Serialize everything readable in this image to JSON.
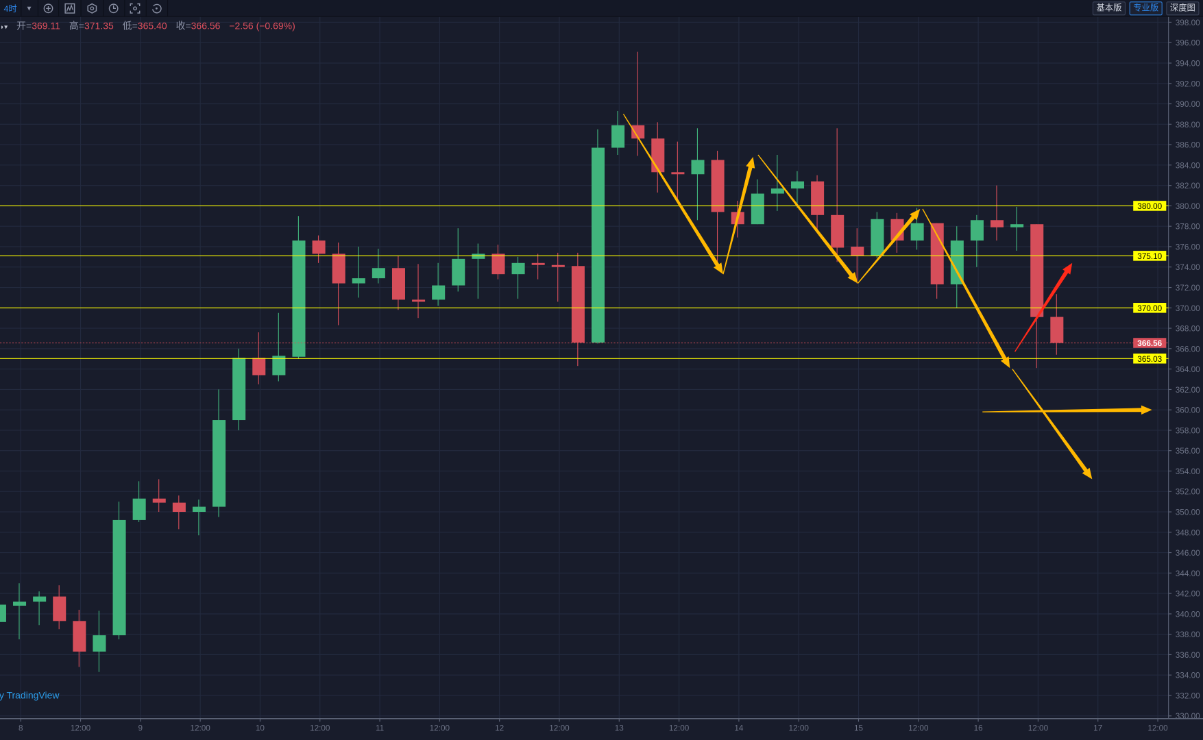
{
  "toolbar": {
    "interval": "4时",
    "icons": [
      "indicator-add-icon",
      "chart-type-icon",
      "settings-hex-icon",
      "clock-icon",
      "screenshot-icon",
      "undo-icon"
    ],
    "right_buttons": [
      {
        "label": "基本版",
        "active": false
      },
      {
        "label": "专业版",
        "active": true
      },
      {
        "label": "深度图",
        "active": false
      }
    ]
  },
  "legend": {
    "open_label": "开=",
    "open": "369.11",
    "high_label": "高=",
    "high": "371.35",
    "low_label": "低=",
    "low": "365.40",
    "close_label": "收=",
    "close": "366.56",
    "change": "−2.56 (−0.69%)"
  },
  "watermark": "by TradingView",
  "colors": {
    "background": "#181c2b",
    "grid": "#232a3f",
    "up": "#41b47c",
    "down": "#d64e5a",
    "level_line": "#ffff00",
    "arrow": "#ffb800",
    "arrow_red": "#ff2a1a",
    "last_price": "#d64e5a"
  },
  "chart_data": {
    "type": "candlestick",
    "interval": "4时",
    "ylim": [
      330,
      399
    ],
    "price_ticks": [
      398,
      396,
      394,
      392,
      390,
      388,
      386,
      384,
      382,
      380,
      378,
      376,
      374,
      372,
      370,
      368,
      366,
      364,
      362,
      360,
      358,
      356,
      354,
      352,
      350,
      348,
      346,
      344,
      342,
      340,
      338,
      336,
      334,
      332,
      330
    ],
    "time_ticks": [
      "8",
      "12:00",
      "9",
      "12:00",
      "10",
      "12:00",
      "11",
      "12:00",
      "12",
      "12:00",
      "13",
      "12:00",
      "14",
      "12:00",
      "15",
      "12:00",
      "16",
      "12:00",
      "17",
      "12:00"
    ],
    "grid": true,
    "candles": [
      [
        "7 20:00",
        339.2,
        342.8,
        339.0,
        340.9
      ],
      [
        "8 00:00",
        340.8,
        343.0,
        337.5,
        341.2
      ],
      [
        "8 04:00",
        341.2,
        342.2,
        338.9,
        341.7
      ],
      [
        "8 08:00",
        341.7,
        342.8,
        338.5,
        339.3
      ],
      [
        "8 12:00",
        339.3,
        340.4,
        334.8,
        336.3
      ],
      [
        "8 16:00",
        336.3,
        340.3,
        334.3,
        337.9
      ],
      [
        "8 20:00",
        337.9,
        351.0,
        337.5,
        349.2
      ],
      [
        "9 00:00",
        349.2,
        353.0,
        349.0,
        351.3
      ],
      [
        "9 04:00",
        351.3,
        353.2,
        350.0,
        350.9
      ],
      [
        "9 08:00",
        350.9,
        351.6,
        348.3,
        350.0
      ],
      [
        "9 12:00",
        350.0,
        351.2,
        347.7,
        350.5
      ],
      [
        "9 16:00",
        350.5,
        362.0,
        349.5,
        359.0
      ],
      [
        "9 20:00",
        359.0,
        366.0,
        358.0,
        365.1
      ],
      [
        "10 00:00",
        365.1,
        367.6,
        362.5,
        363.4
      ],
      [
        "10 04:00",
        363.4,
        369.5,
        362.8,
        365.3
      ],
      [
        "10 08:00",
        365.2,
        379.0,
        365.0,
        376.6
      ],
      [
        "10 12:00",
        376.6,
        377.1,
        374.4,
        375.3
      ],
      [
        "10 16:00",
        375.3,
        376.4,
        368.3,
        372.4
      ],
      [
        "10 20:00",
        372.4,
        376.0,
        371.0,
        372.9
      ],
      [
        "11 00:00",
        372.9,
        375.8,
        372.4,
        373.9
      ],
      [
        "11 04:00",
        373.9,
        375.1,
        369.8,
        370.8
      ],
      [
        "11 08:00",
        370.8,
        374.3,
        369.0,
        370.6
      ],
      [
        "11 12:00",
        370.8,
        374.4,
        370.2,
        372.2
      ],
      [
        "11 16:00",
        372.2,
        377.8,
        371.6,
        374.8
      ],
      [
        "11 20:00",
        374.8,
        376.3,
        370.9,
        375.3
      ],
      [
        "12 00:00",
        375.3,
        376.2,
        372.8,
        373.3
      ],
      [
        "12 04:00",
        373.3,
        375.0,
        370.9,
        374.4
      ],
      [
        "12 08:00",
        374.4,
        375.3,
        372.8,
        374.2
      ],
      [
        "12 12:00",
        374.2,
        375.4,
        370.6,
        374.0
      ],
      [
        "12 16:00",
        374.1,
        375.4,
        364.3,
        366.6
      ],
      [
        "12 20:00",
        366.6,
        387.5,
        366.5,
        385.7
      ],
      [
        "13 00:00",
        385.7,
        389.3,
        385.0,
        387.9
      ],
      [
        "13 04:00",
        387.9,
        395.1,
        384.9,
        386.6
      ],
      [
        "13 08:00",
        386.6,
        388.2,
        381.3,
        383.3
      ],
      [
        "13 12:00",
        383.3,
        386.3,
        380.6,
        383.1
      ],
      [
        "13 16:00",
        383.1,
        387.6,
        378.6,
        384.5
      ],
      [
        "13 20:00",
        384.5,
        385.4,
        373.8,
        379.4
      ],
      [
        "14 00:00",
        379.4,
        380.5,
        376.9,
        378.2
      ],
      [
        "14 04:00",
        378.2,
        382.6,
        378.2,
        381.2
      ],
      [
        "14 08:00",
        381.2,
        385.0,
        379.5,
        381.7
      ],
      [
        "14 12:00",
        381.7,
        383.4,
        379.8,
        382.4
      ],
      [
        "14 16:00",
        382.4,
        383.0,
        377.6,
        379.1
      ],
      [
        "14 20:00",
        379.1,
        387.6,
        374.5,
        375.9
      ],
      [
        "15 00:00",
        376.0,
        377.8,
        372.4,
        375.1
      ],
      [
        "15 04:00",
        375.1,
        379.4,
        374.9,
        378.7
      ],
      [
        "15 08:00",
        378.7,
        379.3,
        375.4,
        376.6
      ],
      [
        "15 12:00",
        376.6,
        379.8,
        375.7,
        378.3
      ],
      [
        "15 16:00",
        378.3,
        378.3,
        370.9,
        372.3
      ],
      [
        "15 20:00",
        372.3,
        378.0,
        370.0,
        376.6
      ],
      [
        "16 00:00",
        376.6,
        379.1,
        374.0,
        378.6
      ],
      [
        "16 04:00",
        378.6,
        382.0,
        376.6,
        377.9
      ],
      [
        "16 08:00",
        377.9,
        379.9,
        375.6,
        378.2
      ],
      [
        "16 12:00",
        378.2,
        378.2,
        364.1,
        369.1
      ],
      [
        "16 16:00",
        369.11,
        371.35,
        365.4,
        366.56
      ]
    ],
    "horizontal_levels": [
      {
        "price": 380.0,
        "label": "380.00"
      },
      {
        "price": 375.1,
        "label": "375.10"
      },
      {
        "price": 370.0,
        "label": "370.00"
      },
      {
        "price": 365.03,
        "label": "365.03"
      }
    ],
    "last_price": {
      "price": 366.56,
      "label": "366.56"
    },
    "drawings": [
      {
        "color": "arrow",
        "from": [
          "13 01:00",
          389.0
        ],
        "to": [
          "13 21:00",
          373.3
        ]
      },
      {
        "color": "arrow",
        "from": [
          "13 21:00",
          373.3
        ],
        "to": [
          "14 03:00",
          384.8
        ]
      },
      {
        "color": "arrow",
        "from": [
          "14 04:00",
          385.0
        ],
        "to": [
          "15 00:00",
          372.4
        ]
      },
      {
        "color": "arrow",
        "from": [
          "15 00:00",
          372.4
        ],
        "to": [
          "15 12:30",
          379.7
        ]
      },
      {
        "color": "arrow",
        "from": [
          "15 13:00",
          379.7
        ],
        "to": [
          "16 06:30",
          364.1
        ]
      },
      {
        "color": "arrow",
        "from": [
          "16 07:00",
          364.0
        ],
        "to": [
          "16 23:00",
          353.2
        ]
      },
      {
        "color": "arrow",
        "from": [
          "16 01:00",
          359.8
        ],
        "to": [
          "17 11:00",
          360.0
        ]
      },
      {
        "color": "arrow_red",
        "from": [
          "16 07:30",
          365.7
        ],
        "to": [
          "16 19:00",
          374.4
        ]
      }
    ]
  }
}
